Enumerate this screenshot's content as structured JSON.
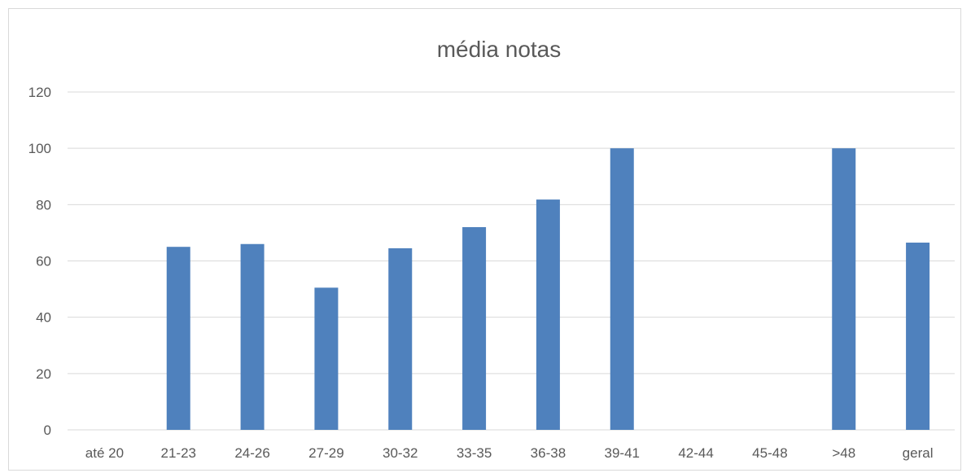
{
  "chart_data": {
    "type": "bar",
    "title": "média notas",
    "xlabel": "",
    "ylabel": "",
    "categories": [
      "até 20",
      "21-23",
      "24-26",
      "27-29",
      "30-32",
      "33-35",
      "36-38",
      "39-41",
      "42-44",
      "45-48",
      ">48",
      "geral"
    ],
    "values": [
      0,
      65,
      66,
      50.5,
      64.5,
      72,
      81.8,
      100,
      0,
      0,
      100,
      66.5
    ],
    "ylim": [
      0,
      120
    ],
    "yticks": [
      0,
      20,
      40,
      60,
      80,
      100,
      120
    ],
    "grid": true,
    "legend": "none",
    "bar_color": "#4f81bd"
  }
}
